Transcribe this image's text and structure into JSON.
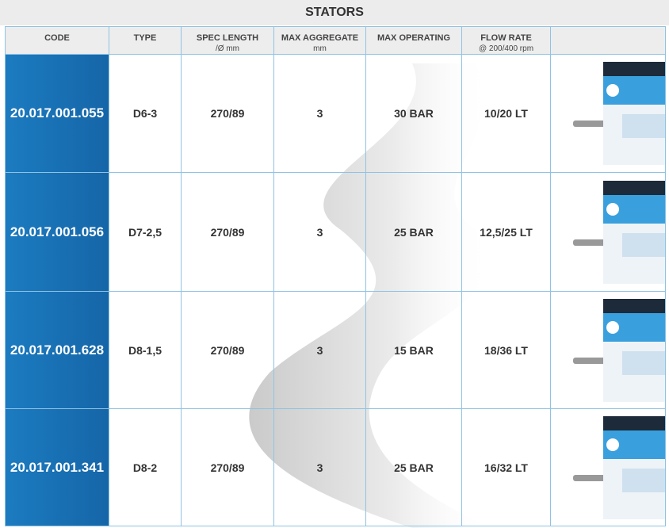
{
  "title": "STATORS",
  "columns": [
    {
      "title": "CODE"
    },
    {
      "title": "TYPE"
    },
    {
      "title": "SPEC LENGTH",
      "subtitle": "/Ø mm"
    },
    {
      "title": "MAX AGGREGATE",
      "subtitle": "mm"
    },
    {
      "title": "MAX OPERATING"
    },
    {
      "title": "FLOW RATE",
      "subtitle": "@ 200/400 rpm"
    }
  ],
  "rows": [
    [
      "20.017.001.055",
      "D6-3",
      "270/89",
      "3",
      "30 BAR",
      "10/20 LT"
    ],
    [
      "20.017.001.056",
      "D7-2,5",
      "270/89",
      "3",
      "25 BAR",
      "12,5/25 LT"
    ],
    [
      "20.017.001.628",
      "D8-1,5",
      "270/89",
      "3",
      "15 BAR",
      "18/36 LT"
    ],
    [
      "20.017.001.341",
      "D8-2",
      "270/89",
      "3",
      "25 BAR",
      "16/32 LT"
    ]
  ]
}
